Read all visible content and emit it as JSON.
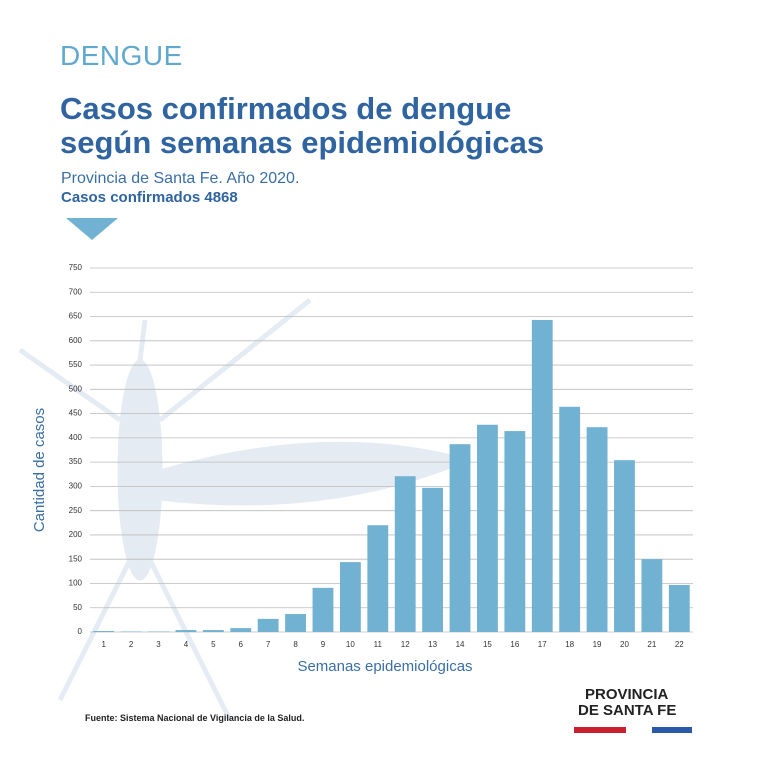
{
  "kicker": "DENGUE",
  "chart_data": {
    "type": "bar",
    "title": "Casos confirmados de dengue según semanas epidemiológicas",
    "subtitle": "Provincia de Santa Fe. Año 2020.",
    "annotation": "Casos confirmados 4868",
    "x_label": "Semanas epidemiológicas",
    "y_label": "Cantidad de casos",
    "categories": [
      "1",
      "2",
      "3",
      "4",
      "5",
      "6",
      "7",
      "8",
      "9",
      "10",
      "11",
      "12",
      "13",
      "14",
      "15",
      "16",
      "17",
      "18",
      "19",
      "20",
      "21",
      "22"
    ],
    "values": [
      2,
      1,
      1,
      4,
      4,
      8,
      27,
      37,
      91,
      144,
      220,
      321,
      297,
      387,
      427,
      414,
      643,
      464,
      422,
      354,
      150,
      97
    ],
    "color": "#71b1d1",
    "ylim": [
      0,
      750
    ],
    "yticks": [
      0,
      50,
      100,
      150,
      200,
      250,
      300,
      350,
      400,
      450,
      500,
      550,
      600,
      650,
      700,
      750
    ],
    "grid": true,
    "source": "Fuente: Sistema Nacional de Vigilancia de la Salud."
  },
  "logo": [
    "PROVINCIA",
    "DE SANTA FE"
  ]
}
